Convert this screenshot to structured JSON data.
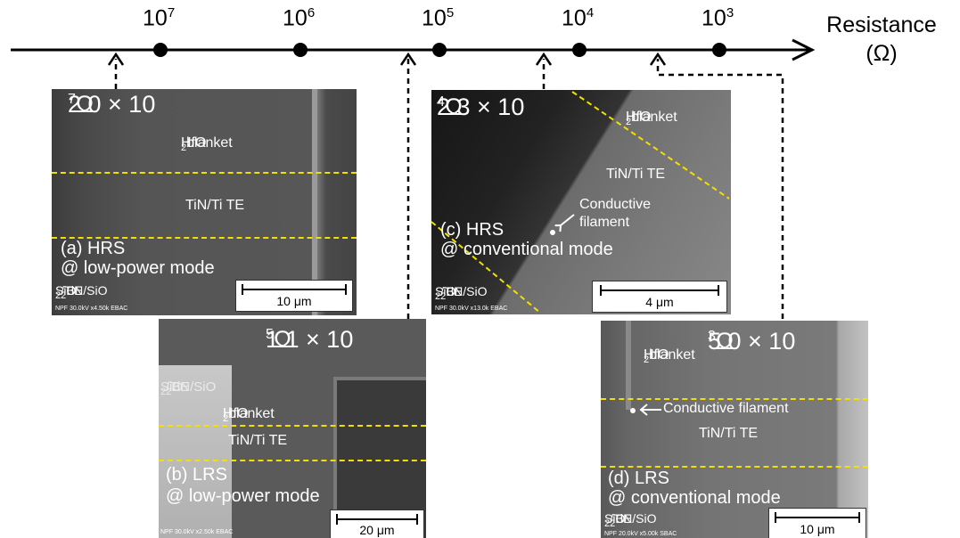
{
  "axis": {
    "title_line1": "Resistance",
    "title_line2": "(Ω)",
    "ticks": [
      {
        "base": "10",
        "exp": "7"
      },
      {
        "base": "10",
        "exp": "6"
      },
      {
        "base": "10",
        "exp": "5"
      },
      {
        "base": "10",
        "exp": "4"
      },
      {
        "base": "10",
        "exp": "3"
      }
    ]
  },
  "panels": {
    "a": {
      "resistance": {
        "mantissa": "2.0 × 10",
        "exp": "7",
        "unit": " Ω"
      },
      "layer_top": "HfO",
      "layer_top_sub": "2",
      "layer_top_rest": " blanket",
      "layer_mid": "TiN/Ti TE",
      "caption_1": "(a) HRS",
      "caption_2": "@ low-power mode",
      "be": {
        "p1": "SiO",
        "s1": "2",
        "p2": "/TiN/SiO",
        "s2": "2",
        "p3": " BE"
      },
      "scale": "10 μm",
      "info": "NPF 30.0kV x4.50k EBAC"
    },
    "b": {
      "resistance": {
        "mantissa": "1.1 × 10",
        "exp": "5",
        "unit": " Ω"
      },
      "be": {
        "p1": "SiO",
        "s1": "2",
        "p2": "/TiN/SiO",
        "s2": "2",
        "p3": " BE"
      },
      "layer_top": "HfO",
      "layer_top_sub": "2",
      "layer_top_rest": " blanket",
      "layer_mid": "TiN/Ti TE",
      "caption_1": "(b) LRS",
      "caption_2": "@ low-power mode",
      "scale": "20 μm",
      "info": "NPF 30.0kV x2.50k EBAC"
    },
    "c": {
      "resistance": {
        "mantissa": "2.3 × 10",
        "exp": "4",
        "unit": " Ω"
      },
      "layer_top": "HfO",
      "layer_top_sub": "2",
      "layer_top_rest": " blanket",
      "layer_mid": "TiN/Ti TE",
      "filament_1": "Conductive",
      "filament_2": "filament",
      "caption_1": "(c) HRS",
      "caption_2": "@ conventional mode",
      "be": {
        "p1": "SiO",
        "s1": "2",
        "p2": "/TiN/SiO",
        "s2": "2",
        "p3": " BE"
      },
      "scale": "4 μm",
      "info": "NPF 30.0kV x13.0k EBAC"
    },
    "d": {
      "resistance": {
        "mantissa": "5.0 × 10",
        "exp": "3",
        "unit": " Ω"
      },
      "layer_top": "HfO",
      "layer_top_sub": "2",
      "layer_top_rest": " blanket",
      "filament": "Conductive  filament",
      "layer_mid": "TiN/Ti TE",
      "caption_1": "(d) LRS",
      "caption_2": "@ conventional mode",
      "be": {
        "p1": "SiO",
        "s1": "2",
        "p2": "/TiN/SiO",
        "s2": "2",
        "p3": " BE"
      },
      "scale": "10 μm",
      "info": "NPF 20.0kV x5.00k SBAC"
    }
  }
}
